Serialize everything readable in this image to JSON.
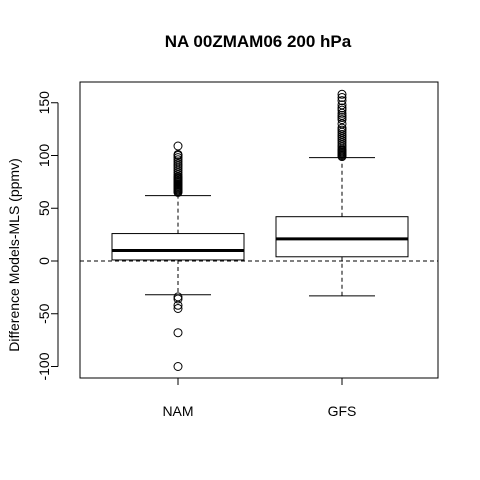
{
  "chart_data": {
    "type": "boxplot",
    "title": "NA 00ZMAM06 200 hPa",
    "xlabel": "",
    "ylabel": "Difference Models-MLS (ppmv)",
    "categories": [
      "NAM",
      "GFS"
    ],
    "ylim": [
      -110,
      170
    ],
    "yticks": [
      -100,
      -50,
      0,
      50,
      100,
      150
    ],
    "reference_line": {
      "y": 0,
      "style": "dashed"
    },
    "grid": false,
    "legend": "none",
    "boxes": [
      {
        "name": "NAM",
        "lower_whisker": -32,
        "q1": 1,
        "median": 10,
        "q3": 26,
        "upper_whisker": 62,
        "outliers": [
          -100,
          -68,
          -45,
          -42,
          -36,
          -34,
          65,
          66,
          67,
          68,
          69,
          70,
          71,
          72,
          73,
          74,
          75,
          76,
          77,
          78,
          79,
          80,
          82,
          84,
          86,
          88,
          90,
          92,
          94,
          96,
          98,
          100,
          101,
          109
        ]
      },
      {
        "name": "GFS",
        "lower_whisker": -33,
        "q1": 4,
        "median": 21,
        "q3": 42,
        "upper_whisker": 98,
        "outliers": [
          99,
          100,
          101,
          102,
          103,
          104,
          105,
          106,
          108,
          110,
          112,
          114,
          116,
          118,
          120,
          122,
          124,
          126,
          130,
          134,
          136,
          138,
          140,
          143,
          145,
          148,
          152,
          155,
          158
        ]
      }
    ]
  }
}
